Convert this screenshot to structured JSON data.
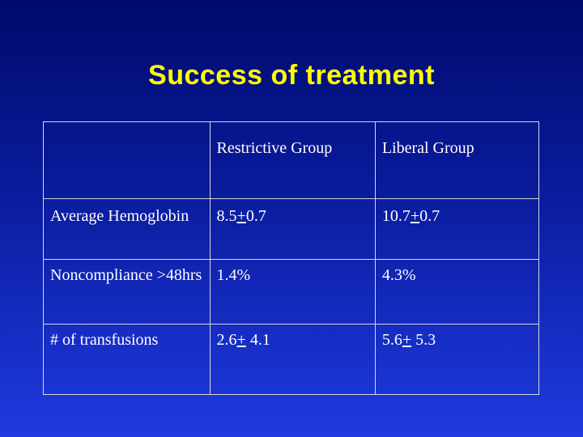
{
  "title": "Success of treatment",
  "table": {
    "header": [
      "",
      "Restrictive Group",
      "Liberal Group"
    ],
    "rows": [
      {
        "label": "Average Hemoglobin",
        "restrictive": {
          "pre": "8.5",
          "pm": "+",
          "post": "0.7"
        },
        "liberal": {
          "pre": "10.7",
          "pm": "+",
          "post": "0.7"
        }
      },
      {
        "label": "Noncompliance >48hrs",
        "restrictive": "1.4%",
        "liberal": "4.3%"
      },
      {
        "label": "# of transfusions",
        "restrictive": {
          "pre": "2.6",
          "pm": "+",
          "post": " 4.1"
        },
        "liberal": {
          "pre": "5.6",
          "pm": "+",
          "post": " 5.3"
        }
      }
    ]
  },
  "colors": {
    "title": "#ffff00",
    "text": "#ffffff",
    "border": "#d8d8d8",
    "background_top": "#000a6b",
    "background_bottom": "#1f3ae0"
  }
}
